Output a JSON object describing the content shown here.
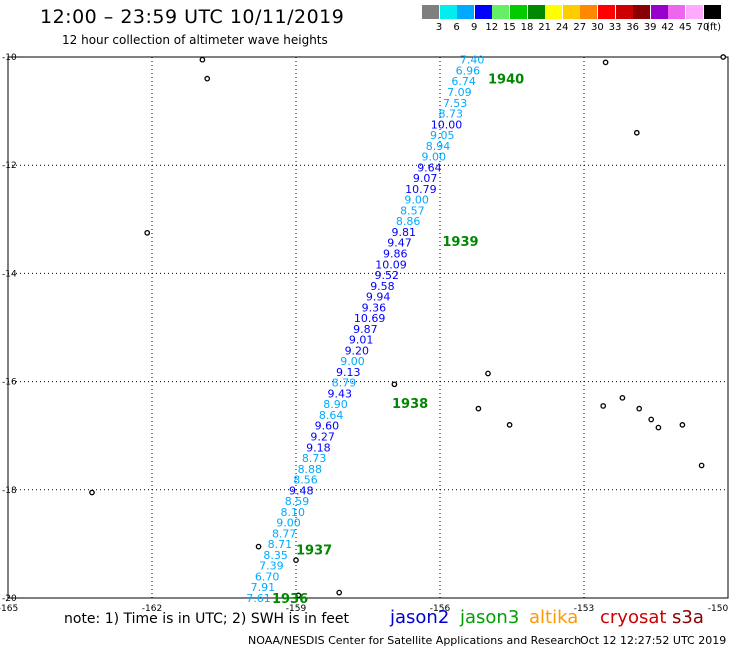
{
  "header": {
    "title": "12:00 – 23:59 UTC 10/11/2019",
    "subtitle": "12 hour collection of altimeter wave heights"
  },
  "scale": {
    "unit": "(ft)",
    "bins": [
      {
        "color": "#7f7f7f",
        "label": "3"
      },
      {
        "color": "#00eeee",
        "label": "6"
      },
      {
        "color": "#00aaff",
        "label": "9"
      },
      {
        "color": "#0000ff",
        "label": "12"
      },
      {
        "color": "#66ee66",
        "label": "15"
      },
      {
        "color": "#00cc00",
        "label": "18"
      },
      {
        "color": "#008800",
        "label": "21"
      },
      {
        "color": "#ffff00",
        "label": "24"
      },
      {
        "color": "#ffcc00",
        "label": "27"
      },
      {
        "color": "#ff8800",
        "label": "30"
      },
      {
        "color": "#ff0000",
        "label": "33"
      },
      {
        "color": "#cc0000",
        "label": "36"
      },
      {
        "color": "#880000",
        "label": "39"
      },
      {
        "color": "#9900cc",
        "label": "42"
      },
      {
        "color": "#ee66ee",
        "label": "45"
      },
      {
        "color": "#ffaaff",
        "label": "70"
      },
      {
        "color": "#000000",
        "label": ""
      }
    ]
  },
  "axes": {
    "lon_labels": [
      "-165",
      "-162",
      "-159",
      "-156",
      "-153",
      "-150"
    ],
    "lat_labels": [
      "-10",
      "-12",
      "-14",
      "-16",
      "-18",
      "-20"
    ]
  },
  "track": {
    "start": {
      "lon": -155.33,
      "lat": -10.05
    },
    "end": {
      "lon": -159.78,
      "lat": -20.0
    },
    "values": [
      "7.40",
      "6.96",
      "6.74",
      "7.09",
      "7.53",
      "8.73",
      "10.00",
      "9.05",
      "8.94",
      "9.00",
      "9.64",
      "9.07",
      "10.79",
      "9.00",
      "8.57",
      "8.86",
      "9.81",
      "9.47",
      "9.86",
      "10.09",
      "9.52",
      "9.58",
      "9.94",
      "9.36",
      "10.69",
      "9.87",
      "9.01",
      "9.20",
      "9.00",
      "9.13",
      "8.79",
      "9.43",
      "8.90",
      "8.64",
      "9.60",
      "9.27",
      "9.18",
      "8.73",
      "8.88",
      "8.56",
      "9.48",
      "8.59",
      "8.10",
      "9.00",
      "8.77",
      "8.71",
      "8.35",
      "7.39",
      "6.70",
      "7.91",
      "7.61"
    ],
    "colors": [
      "#00aaff",
      "#00aaff",
      "#00aaff",
      "#00aaff",
      "#00aaff",
      "#00aaff",
      "#0000ff",
      "#00aaff",
      "#00aaff",
      "#00aaff",
      "#0000ff",
      "#0000ff",
      "#0000ff",
      "#00aaff",
      "#00aaff",
      "#00aaff",
      "#0000ff",
      "#0000ff",
      "#0000ff",
      "#0000ff",
      "#0000ff",
      "#0000ff",
      "#0000ff",
      "#0000ff",
      "#0000ff",
      "#0000ff",
      "#0000ff",
      "#0000ff",
      "#00aaff",
      "#0000ff",
      "#00aaff",
      "#0000ff",
      "#00aaff",
      "#00aaff",
      "#0000ff",
      "#0000ff",
      "#0000ff",
      "#00aaff",
      "#00aaff",
      "#00aaff",
      "#0000ff",
      "#00aaff",
      "#00aaff",
      "#00aaff",
      "#00aaff",
      "#00aaff",
      "#00aaff",
      "#00aaff",
      "#00aaff",
      "#00aaff",
      "#00aaff"
    ],
    "times": [
      {
        "text": "1940",
        "lon": -155.0,
        "lat": -10.4
      },
      {
        "text": "1939",
        "lon": -155.95,
        "lat": -13.4
      },
      {
        "text": "1938",
        "lon": -157.0,
        "lat": -16.4
      },
      {
        "text": "1937",
        "lon": -159.0,
        "lat": -19.1
      },
      {
        "text": "1936",
        "lon": -159.5,
        "lat": -20.0
      }
    ],
    "time_color": "#008800"
  },
  "islands": [
    {
      "lon": -160.95,
      "lat": -10.05
    },
    {
      "lon": -160.85,
      "lat": -10.4
    },
    {
      "lon": -162.1,
      "lat": -13.25
    },
    {
      "lon": -163.25,
      "lat": -18.05
    },
    {
      "lon": -159.78,
      "lat": -19.05
    },
    {
      "lon": -159.0,
      "lat": -19.3
    },
    {
      "lon": -158.1,
      "lat": -19.9
    },
    {
      "lon": -158.95,
      "lat": -19.95
    },
    {
      "lon": -156.95,
      "lat": -16.05
    },
    {
      "lon": -155.0,
      "lat": -15.85
    },
    {
      "lon": -155.2,
      "lat": -16.5
    },
    {
      "lon": -154.55,
      "lat": -16.8
    },
    {
      "lon": -152.55,
      "lat": -10.1
    },
    {
      "lon": -151.9,
      "lat": -11.4
    },
    {
      "lon": -150.1,
      "lat": -10.0
    },
    {
      "lon": -152.6,
      "lat": -16.45
    },
    {
      "lon": -152.2,
      "lat": -16.3
    },
    {
      "lon": -151.85,
      "lat": -16.5
    },
    {
      "lon": -151.6,
      "lat": -16.7
    },
    {
      "lon": -151.45,
      "lat": -16.85
    },
    {
      "lon": -150.95,
      "lat": -16.8
    },
    {
      "lon": -150.55,
      "lat": -17.55
    }
  ],
  "footer": {
    "note": "note: 1) Time is in UTC; 2) SWH is in feet",
    "satellites": [
      {
        "name": "jason2",
        "color": "#0000cc"
      },
      {
        "name": "jason3",
        "color": "#00a000"
      },
      {
        "name": "altika",
        "color": "#ff9900"
      },
      {
        "name": "cryosat",
        "color": "#cc0000"
      },
      {
        "name": "s3a",
        "color": "#880000"
      }
    ],
    "credit": "NOAA/NESDIS Center for Satellite Applications and Research",
    "timestamp": "Oct 12 12:27:52 UTC 2019"
  }
}
